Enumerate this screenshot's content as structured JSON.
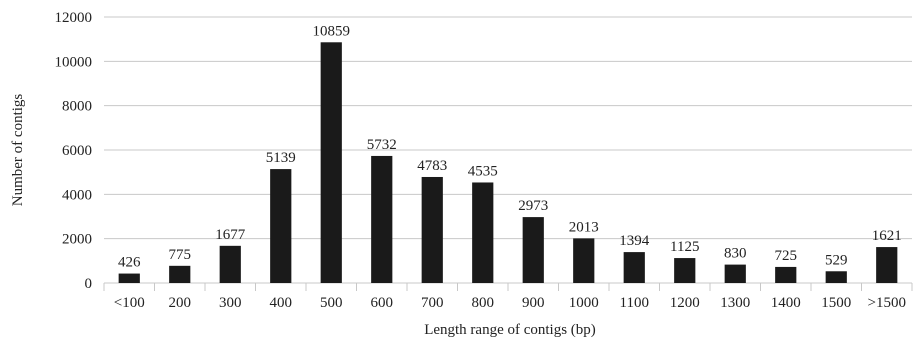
{
  "chart_data": {
    "type": "bar",
    "categories": [
      "<100",
      "200",
      "300",
      "400",
      "500",
      "600",
      "700",
      "800",
      "900",
      "1000",
      "1100",
      "1200",
      "1300",
      "1400",
      "1500",
      ">1500"
    ],
    "values": [
      426,
      775,
      1677,
      5139,
      10859,
      5732,
      4783,
      4535,
      2973,
      2013,
      1394,
      1125,
      830,
      725,
      529,
      1621
    ],
    "xlabel": "Length range of contigs (bp)",
    "ylabel": "Number of contigs",
    "ylim": [
      0,
      12000
    ],
    "yticks": [
      0,
      2000,
      4000,
      6000,
      8000,
      10000,
      12000
    ],
    "grid": true,
    "bar_color": "#1a1a1a",
    "grid_color": "#c8c8c8"
  }
}
